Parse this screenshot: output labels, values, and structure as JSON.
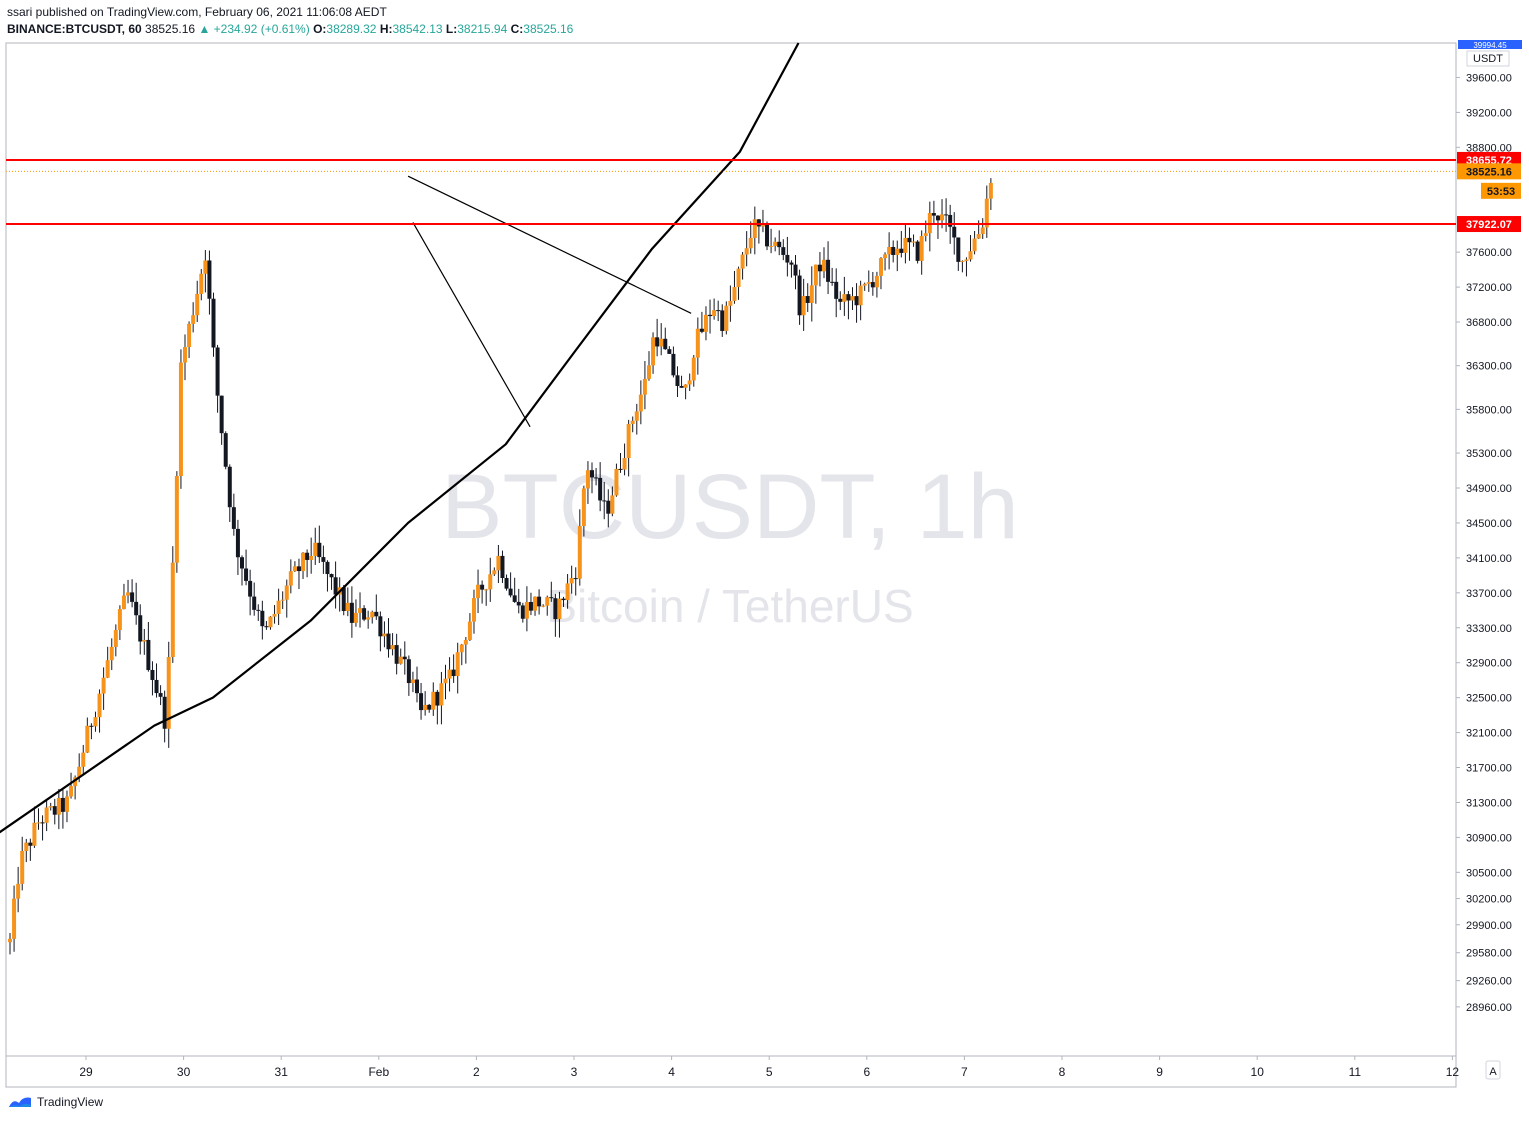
{
  "header": {
    "published": "ssari published on TradingView.com, February 06, 2021 11:06:08 AEDT",
    "symbol": "BINANCE:BTCUSDT, 60",
    "last": "38525.16",
    "change": "▲ +234.92 (+0.61%)",
    "o_label": "O:",
    "o_value": "38289.32",
    "h_label": "H:",
    "h_value": "38542.13",
    "l_label": "L:",
    "l_value": "38215.94",
    "c_label": "C:",
    "c_value": "38525.16"
  },
  "watermark": {
    "symbol": "BTCUSDT, 1h",
    "name": "Bitcoin / TetherUS"
  },
  "price_axis": {
    "currency": "USDT",
    "top_label": "39994.45",
    "ticks": [
      "39600.00",
      "39200.00",
      "38800.00",
      "37600.00",
      "37200.00",
      "36800.00",
      "36300.00",
      "35800.00",
      "35300.00",
      "34900.00",
      "34500.00",
      "34100.00",
      "33700.00",
      "33300.00",
      "32900.00",
      "32500.00",
      "32100.00",
      "31700.00",
      "31300.00",
      "30900.00",
      "30500.00",
      "30200.00",
      "29900.00",
      "29580.00",
      "29260.00",
      "28960.00"
    ],
    "auto_label": "A"
  },
  "tags": {
    "resistance": "38655.72",
    "last_price": "38525.16",
    "countdown": "53:53",
    "support": "37922.07"
  },
  "time_axis": [
    "29",
    "30",
    "31",
    "Feb",
    "2",
    "3",
    "4",
    "5",
    "6",
    "7",
    "8",
    "9",
    "10",
    "11",
    "12"
  ],
  "colors": {
    "up_candle": "#f7931a",
    "down_candle": "#131722",
    "level_line": "#ff0000",
    "last_price": "#ff9800",
    "trendline": "#000000",
    "accent": "#2962ff"
  },
  "chart_data": {
    "type": "candlestick",
    "title": "BTCUSDT, 1h",
    "symbol": "BINANCE:BTCUSDT",
    "interval": "60",
    "y_range": [
      28800,
      39994
    ],
    "x_range": [
      "Jan 28",
      "Feb 12"
    ],
    "horizontal_levels": [
      38655.72,
      37922.07
    ],
    "last_price": 38525.16,
    "ohlc_last": {
      "o": 38289.32,
      "h": 38542.13,
      "l": 38215.94,
      "c": 38525.16
    },
    "trend_path": [
      {
        "x": 0,
        "y": 30870
      },
      {
        "x": 1.7,
        "y": 32180
      },
      {
        "x": 2.3,
        "y": 32500
      },
      {
        "x": 3.3,
        "y": 33380
      },
      {
        "x": 4.3,
        "y": 34500
      },
      {
        "x": 5.3,
        "y": 35400
      },
      {
        "x": 6.0,
        "y": 36450
      },
      {
        "x": 6.8,
        "y": 37640
      },
      {
        "x": 7.7,
        "y": 38750
      },
      {
        "x": 8.3,
        "y": 39994
      }
    ],
    "trendlines": [
      {
        "x1": 4.3,
        "y1": 38470,
        "x2": 7.2,
        "y2": 36900
      },
      {
        "x1": 4.35,
        "y1": 37940,
        "x2": 5.55,
        "y2": 35600
      }
    ],
    "anchors": [
      {
        "x": 0.0,
        "y": 29700
      },
      {
        "x": 0.1,
        "y": 30600
      },
      {
        "x": 0.3,
        "y": 31100
      },
      {
        "x": 0.6,
        "y": 31300
      },
      {
        "x": 0.9,
        "y": 32500
      },
      {
        "x": 1.2,
        "y": 33700
      },
      {
        "x": 1.45,
        "y": 32800
      },
      {
        "x": 1.6,
        "y": 32200
      },
      {
        "x": 1.75,
        "y": 36300
      },
      {
        "x": 2.0,
        "y": 37600
      },
      {
        "x": 2.1,
        "y": 36200
      },
      {
        "x": 2.3,
        "y": 34300
      },
      {
        "x": 2.6,
        "y": 33200
      },
      {
        "x": 2.85,
        "y": 33800
      },
      {
        "x": 3.1,
        "y": 34200
      },
      {
        "x": 3.3,
        "y": 33800
      },
      {
        "x": 3.5,
        "y": 33400
      },
      {
        "x": 3.7,
        "y": 33500
      },
      {
        "x": 4.1,
        "y": 32700
      },
      {
        "x": 4.2,
        "y": 32300
      },
      {
        "x": 4.5,
        "y": 32700
      },
      {
        "x": 4.8,
        "y": 33700
      },
      {
        "x": 5.0,
        "y": 34100
      },
      {
        "x": 5.2,
        "y": 33500
      },
      {
        "x": 5.4,
        "y": 33600
      },
      {
        "x": 5.6,
        "y": 33500
      },
      {
        "x": 5.8,
        "y": 34000
      },
      {
        "x": 5.9,
        "y": 35200
      },
      {
        "x": 6.1,
        "y": 34600
      },
      {
        "x": 6.2,
        "y": 35000
      },
      {
        "x": 6.4,
        "y": 35800
      },
      {
        "x": 6.5,
        "y": 36100
      },
      {
        "x": 6.6,
        "y": 36700
      },
      {
        "x": 6.8,
        "y": 36200
      },
      {
        "x": 6.9,
        "y": 35900
      },
      {
        "x": 7.0,
        "y": 36500
      },
      {
        "x": 7.2,
        "y": 37000
      },
      {
        "x": 7.3,
        "y": 36800
      },
      {
        "x": 7.4,
        "y": 37100
      },
      {
        "x": 7.6,
        "y": 37900
      },
      {
        "x": 7.8,
        "y": 37700
      },
      {
        "x": 8.0,
        "y": 37500
      },
      {
        "x": 8.1,
        "y": 36900
      },
      {
        "x": 8.3,
        "y": 37500
      },
      {
        "x": 8.5,
        "y": 37000
      },
      {
        "x": 8.7,
        "y": 37100
      },
      {
        "x": 8.9,
        "y": 37400
      },
      {
        "x": 9.1,
        "y": 37700
      },
      {
        "x": 9.3,
        "y": 37600
      },
      {
        "x": 9.45,
        "y": 38100
      },
      {
        "x": 9.6,
        "y": 37900
      },
      {
        "x": 9.75,
        "y": 37500
      },
      {
        "x": 9.85,
        "y": 37700
      },
      {
        "x": 9.95,
        "y": 37900
      },
      {
        "x": 10.05,
        "y": 38525
      }
    ]
  }
}
